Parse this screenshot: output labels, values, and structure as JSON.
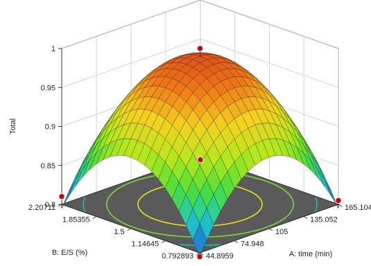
{
  "chart_data": {
    "type": "surface3d",
    "z_label": "Total",
    "x_label": "A: time (min)",
    "y_label": "B: E/S (%)",
    "z_ticks": [
      "0.8",
      "0.85",
      "0.9",
      "0.95",
      "1"
    ],
    "x_ticks": [
      "44.8959",
      "74.948",
      "105",
      "135.052",
      "165.104"
    ],
    "y_ticks": [
      "0.792893",
      "1.14645",
      "1.5",
      "1.85355",
      "2.20711"
    ],
    "x_range": [
      44.8959,
      165.104
    ],
    "y_range": [
      0.792893,
      2.20711
    ],
    "z_range": [
      0.8,
      1.0
    ],
    "surface": {
      "peak": {
        "x": 105,
        "y": 1.5,
        "z": 0.99
      },
      "corner_values": [
        {
          "x": 44.8959,
          "y": 0.792893,
          "z": 0.795
        },
        {
          "x": 165.104,
          "y": 0.792893,
          "z": 0.805
        },
        {
          "x": 165.104,
          "y": 2.20711,
          "z": 0.795
        },
        {
          "x": 44.8959,
          "y": 2.20711,
          "z": 0.81
        }
      ],
      "colormap": [
        "#1f5fd6",
        "#1fc8c8",
        "#4ade3a",
        "#b8e81a",
        "#f5d21e",
        "#f07a16",
        "#d8431a"
      ]
    },
    "design_points": [
      {
        "x": 105,
        "y": 1.5,
        "z": 1.0
      },
      {
        "x": 44.8959,
        "y": 0.792893,
        "z": 0.795
      },
      {
        "x": 165.104,
        "y": 0.792893,
        "z": 0.805
      },
      {
        "x": 165.104,
        "y": 2.20711,
        "z": 0.795
      },
      {
        "x": 44.8959,
        "y": 2.20711,
        "z": 0.81
      }
    ],
    "contour_levels": [
      0.95,
      0.9,
      0.85
    ],
    "contour_colors": [
      "#e8e022",
      "#7ad83a",
      "#1fc0b8"
    ],
    "grid": true,
    "floor_color": "#5a5a5a"
  }
}
